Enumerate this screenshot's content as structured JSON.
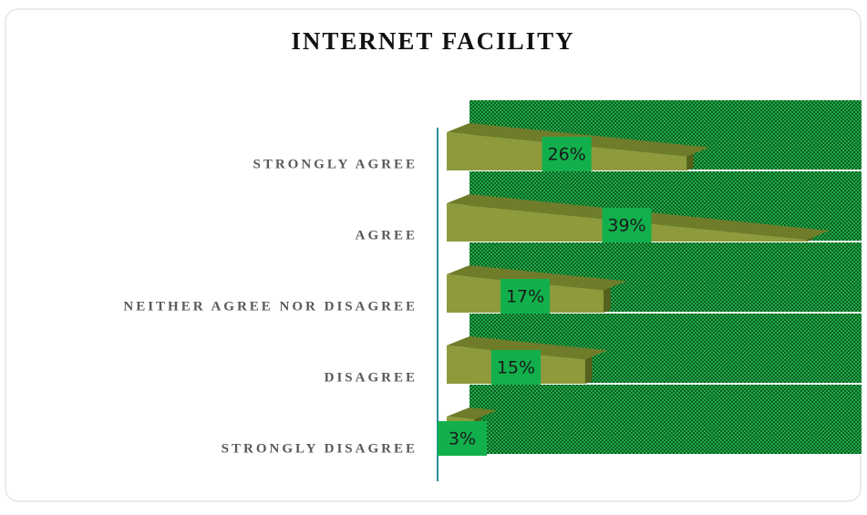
{
  "chart_data": {
    "type": "bar",
    "orientation": "horizontal",
    "title": "INTERNET FACILITY",
    "categories": [
      "STRONGLY AGREE",
      "AGREE",
      "NEITHER AGREE NOR DISAGREE",
      "DISAGREE",
      "STRONGLY DISAGREE"
    ],
    "values": [
      26,
      39,
      17,
      15,
      3
    ],
    "value_labels": [
      "26%",
      "39%",
      "17%",
      "15%",
      "3%"
    ],
    "color": "#8e9a3c",
    "label_color": "#12b04c",
    "wall_color": "#0f7a30"
  }
}
